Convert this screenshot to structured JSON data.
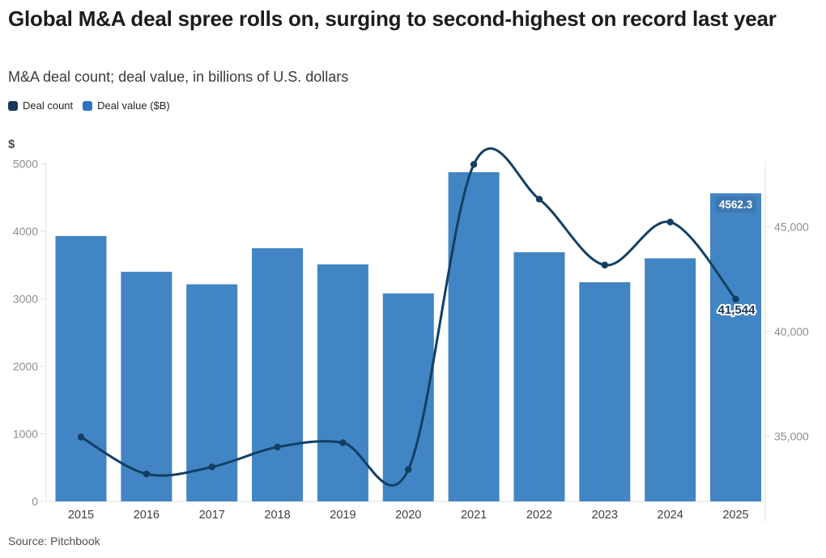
{
  "header": {
    "title": "Global M&A deal spree rolls on, surging to second-highest on record last year",
    "subtitle": "M&A deal count; deal value, in billions of U.S. dollars"
  },
  "legend": {
    "position": "top-left",
    "items": [
      {
        "label": "Deal count",
        "color": "#16395c"
      },
      {
        "label": "Deal value ($B)",
        "color": "#2e74c4"
      }
    ]
  },
  "footer": {
    "source": "Source: Pitchbook"
  },
  "chart_data": {
    "type": "bar",
    "subtype": "combo bar + line with dual y-axes",
    "categories": [
      "2015",
      "2016",
      "2017",
      "2018",
      "2019",
      "2020",
      "2021",
      "2022",
      "2023",
      "2024",
      "2025"
    ],
    "series": [
      {
        "name": "Deal value ($B)",
        "kind": "bar",
        "axis": "left",
        "color": "#4285c4",
        "values": [
          3930,
          3400,
          3215,
          3750,
          3510,
          3080,
          4875,
          3690,
          3245,
          3600,
          4562.3
        ]
      },
      {
        "name": "Deal count",
        "kind": "line",
        "axis": "right",
        "color": "#123f63",
        "marker": "circle",
        "values": [
          34970,
          33210,
          33540,
          34490,
          34700,
          33420,
          47970,
          46310,
          43170,
          45220,
          41544
        ]
      }
    ],
    "left_axis": {
      "title": "$",
      "ylim": [
        0,
        5000
      ],
      "ticks": [
        {
          "value": 0,
          "label": "0"
        },
        {
          "value": 1000,
          "label": "1000"
        },
        {
          "value": 2000,
          "label": "2000"
        },
        {
          "value": 3000,
          "label": "3000"
        },
        {
          "value": 4000,
          "label": "4000"
        },
        {
          "value": 5000,
          "label": "5000"
        }
      ]
    },
    "right_axis": {
      "ylim": [
        31900,
        48000
      ],
      "ticks": [
        {
          "value": 35000,
          "label": "35,000"
        },
        {
          "value": 40000,
          "label": "40,000"
        },
        {
          "value": 45000,
          "label": "45,000"
        }
      ]
    },
    "annotations": [
      {
        "target": "bar-2025",
        "text": "4562.3",
        "text_color": "#ffffff",
        "bg_color": "#3d79b0"
      },
      {
        "target": "point-2025",
        "text": "41,544",
        "text_color": "#16395c",
        "halo_color": "#ffffff"
      }
    ],
    "grid": "off",
    "legend_position": "top-left"
  },
  "colors": {
    "axis_line": "#e0e0e0",
    "tick_text": "#8e8e8e",
    "category_text": "#3f3f3f",
    "axis_title": "#4b4b4b"
  }
}
